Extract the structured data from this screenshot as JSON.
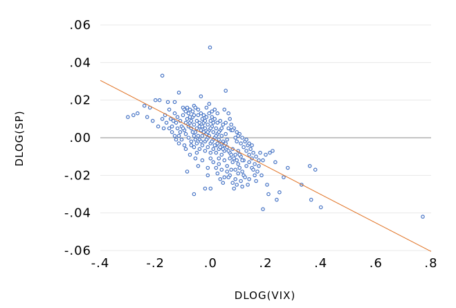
{
  "chart_data": {
    "type": "scatter",
    "title": "",
    "xlabel": "DLOG(VIX)",
    "ylabel": "DLOG(SP)",
    "xlim": [
      -0.4,
      0.8
    ],
    "ylim": [
      -0.06,
      0.06
    ],
    "x_ticks": [
      -0.4,
      -0.2,
      0.0,
      0.2,
      0.4,
      0.6,
      0.8
    ],
    "x_tick_labels": [
      "-.4",
      "-.2",
      ".0",
      ".2",
      ".4",
      ".6",
      ".8"
    ],
    "y_ticks": [
      0.06,
      0.04,
      0.02,
      0.0,
      -0.02,
      -0.04,
      -0.06
    ],
    "y_tick_labels": [
      ".06",
      ".04",
      ".02",
      ".00",
      "-.02",
      "-.04",
      "-.06"
    ],
    "grid": "horizontal",
    "marker_color": "#4472c4",
    "line_color": "#e07020",
    "zero_line_color": "#a0a0a0",
    "trend_line": {
      "x": [
        -0.4,
        0.8
      ],
      "y": [
        0.0305,
        -0.0605
      ]
    },
    "series": [
      {
        "points": [
          [
            -0.002,
            0.048
          ],
          [
            -0.175,
            0.033
          ],
          [
            0.055,
            0.025
          ],
          [
            -0.115,
            0.024
          ],
          [
            -0.035,
            0.022
          ],
          [
            -0.13,
            0.019
          ],
          [
            -0.2,
            0.02
          ],
          [
            -0.185,
            0.02
          ],
          [
            -0.155,
            0.019
          ],
          [
            -0.24,
            0.017
          ],
          [
            -0.22,
            0.016
          ],
          [
            -0.1,
            0.016
          ],
          [
            -0.06,
            0.017
          ],
          [
            -0.28,
            0.012
          ],
          [
            -0.3,
            0.011
          ],
          [
            -0.265,
            0.013
          ],
          [
            -0.23,
            0.011
          ],
          [
            -0.21,
            0.009
          ],
          [
            -0.175,
            0.01
          ],
          [
            -0.16,
            0.008
          ],
          [
            -0.14,
            0.006
          ],
          [
            -0.15,
            0.005
          ],
          [
            -0.19,
            0.006
          ],
          [
            -0.17,
            0.005
          ],
          [
            -0.13,
            0.013
          ],
          [
            -0.12,
            0.011
          ],
          [
            -0.11,
            0.009
          ],
          [
            -0.105,
            0.006
          ],
          [
            -0.095,
            0.004
          ],
          [
            -0.09,
            0.002
          ],
          [
            -0.085,
            0.01
          ],
          [
            -0.08,
            0.013
          ],
          [
            -0.075,
            0.008
          ],
          [
            -0.07,
            0.005
          ],
          [
            -0.065,
            0.011
          ],
          [
            -0.06,
            0.007
          ],
          [
            -0.055,
            0.003
          ],
          [
            -0.05,
            0.009
          ],
          [
            -0.045,
            0.012
          ],
          [
            -0.04,
            0.006
          ],
          [
            -0.035,
            0.004
          ],
          [
            -0.03,
            0.01
          ],
          [
            -0.025,
            0.008
          ],
          [
            -0.02,
            0.005
          ],
          [
            -0.015,
            0.002
          ],
          [
            -0.01,
            0.007
          ],
          [
            -0.005,
            0.004
          ],
          [
            0.0,
            0.009
          ],
          [
            0.005,
            0.006
          ],
          [
            0.01,
            0.003
          ],
          [
            0.015,
            0.0
          ],
          [
            0.02,
            0.005
          ],
          [
            0.025,
            0.002
          ],
          [
            0.03,
            -0.001
          ],
          [
            0.035,
            0.004
          ],
          [
            0.04,
            0.001
          ],
          [
            0.045,
            -0.002
          ],
          [
            0.05,
            -0.004
          ],
          [
            0.055,
            0.002
          ],
          [
            0.06,
            -0.001
          ],
          [
            -0.08,
            0.0
          ],
          [
            -0.07,
            -0.002
          ],
          [
            -0.06,
            0.001
          ],
          [
            -0.05,
            -0.003
          ],
          [
            -0.04,
            -0.001
          ],
          [
            -0.03,
            0.001
          ],
          [
            -0.02,
            -0.002
          ],
          [
            -0.01,
            0.0
          ],
          [
            0.0,
            -0.003
          ],
          [
            0.01,
            -0.001
          ],
          [
            0.02,
            -0.004
          ],
          [
            0.03,
            -0.006
          ],
          [
            0.04,
            -0.003
          ],
          [
            0.05,
            -0.007
          ],
          [
            0.06,
            -0.005
          ],
          [
            0.07,
            -0.008
          ],
          [
            0.08,
            -0.006
          ],
          [
            0.09,
            -0.009
          ],
          [
            0.1,
            -0.007
          ],
          [
            0.11,
            -0.01
          ],
          [
            -0.1,
            0.012
          ],
          [
            -0.095,
            0.015
          ],
          [
            -0.09,
            0.014
          ],
          [
            -0.085,
            0.016
          ],
          [
            -0.075,
            0.015
          ],
          [
            -0.065,
            0.014
          ],
          [
            -0.055,
            0.016
          ],
          [
            -0.045,
            0.015
          ],
          [
            -0.035,
            0.013
          ],
          [
            -0.025,
            0.012
          ],
          [
            -0.015,
            0.011
          ],
          [
            -0.005,
            0.013
          ],
          [
            0.005,
            0.011
          ],
          [
            0.015,
            0.01
          ],
          [
            0.025,
            0.008
          ],
          [
            0.035,
            0.009
          ],
          [
            0.045,
            0.007
          ],
          [
            0.055,
            0.008
          ],
          [
            0.065,
            0.005
          ],
          [
            0.075,
            0.004
          ],
          [
            0.085,
            0.005
          ],
          [
            0.095,
            0.003
          ],
          [
            0.105,
            0.002
          ],
          [
            0.115,
            0.0
          ],
          [
            0.125,
            -0.002
          ],
          [
            0.135,
            -0.004
          ],
          [
            0.145,
            -0.006
          ],
          [
            0.155,
            -0.008
          ],
          [
            0.165,
            -0.01
          ],
          [
            0.175,
            -0.012
          ],
          [
            0.12,
            -0.012
          ],
          [
            0.13,
            -0.015
          ],
          [
            0.14,
            -0.013
          ],
          [
            0.15,
            -0.016
          ],
          [
            0.16,
            -0.014
          ],
          [
            0.17,
            -0.018
          ],
          [
            0.1,
            -0.014
          ],
          [
            0.09,
            -0.017
          ],
          [
            0.08,
            -0.013
          ],
          [
            0.07,
            -0.011
          ],
          [
            0.06,
            -0.015
          ],
          [
            0.05,
            -0.012
          ],
          [
            0.04,
            -0.009
          ],
          [
            0.03,
            -0.011
          ],
          [
            0.02,
            -0.008
          ],
          [
            0.01,
            -0.006
          ],
          [
            0.0,
            -0.008
          ],
          [
            -0.01,
            -0.005
          ],
          [
            -0.02,
            -0.007
          ],
          [
            -0.03,
            -0.004
          ],
          [
            -0.04,
            -0.006
          ],
          [
            -0.05,
            -0.008
          ],
          [
            -0.06,
            -0.005
          ],
          [
            -0.07,
            -0.004
          ],
          [
            -0.09,
            -0.006
          ],
          [
            -0.11,
            0.003
          ],
          [
            -0.12,
            0.005
          ],
          [
            -0.125,
            0.008
          ],
          [
            -0.115,
            0.001
          ],
          [
            -0.105,
            -0.001
          ],
          [
            -0.1,
            0.005
          ],
          [
            -0.09,
            0.008
          ],
          [
            -0.08,
            0.006
          ],
          [
            -0.07,
            0.009
          ],
          [
            -0.06,
            0.012
          ],
          [
            -0.05,
            0.005
          ],
          [
            -0.04,
            0.008
          ],
          [
            -0.03,
            0.006
          ],
          [
            -0.02,
            0.009
          ],
          [
            -0.01,
            0.003
          ],
          [
            0.0,
            0.005
          ],
          [
            0.01,
            0.008
          ],
          [
            0.02,
            0.001
          ],
          [
            0.03,
            0.003
          ],
          [
            0.04,
            0.005
          ],
          [
            0.065,
            0.013
          ],
          [
            0.05,
            0.015
          ],
          [
            0.08,
            0.004
          ],
          [
            0.1,
            0.001
          ],
          [
            0.11,
            -0.003
          ],
          [
            0.12,
            -0.005
          ],
          [
            0.13,
            -0.007
          ],
          [
            0.14,
            -0.009
          ],
          [
            0.15,
            -0.011
          ],
          [
            0.18,
            -0.008
          ],
          [
            0.2,
            -0.009
          ],
          [
            0.215,
            -0.008
          ],
          [
            0.225,
            -0.007
          ],
          [
            0.19,
            -0.012
          ],
          [
            0.175,
            -0.015
          ],
          [
            0.16,
            -0.02
          ],
          [
            0.14,
            -0.022
          ],
          [
            0.12,
            -0.02
          ],
          [
            0.11,
            -0.023
          ],
          [
            0.1,
            -0.019
          ],
          [
            0.09,
            -0.022
          ],
          [
            0.08,
            -0.024
          ],
          [
            0.07,
            -0.02
          ],
          [
            0.06,
            -0.018
          ],
          [
            0.05,
            -0.021
          ],
          [
            0.04,
            -0.017
          ],
          [
            0.03,
            -0.014
          ],
          [
            0.02,
            -0.016
          ],
          [
            0.01,
            -0.013
          ],
          [
            0.0,
            -0.011
          ],
          [
            0.135,
            -0.025
          ],
          [
            0.115,
            -0.026
          ],
          [
            0.095,
            -0.025
          ],
          [
            0.085,
            -0.027
          ],
          [
            0.125,
            -0.021
          ],
          [
            0.155,
            -0.017
          ],
          [
            0.165,
            -0.023
          ],
          [
            0.185,
            -0.02
          ],
          [
            0.205,
            -0.025
          ],
          [
            0.21,
            -0.03
          ],
          [
            0.19,
            -0.038
          ],
          [
            0.24,
            -0.033
          ],
          [
            0.25,
            -0.029
          ],
          [
            0.235,
            -0.013
          ],
          [
            0.265,
            -0.021
          ],
          [
            0.28,
            -0.016
          ],
          [
            0.33,
            -0.025
          ],
          [
            0.36,
            -0.015
          ],
          [
            0.38,
            -0.017
          ],
          [
            0.365,
            -0.033
          ],
          [
            0.4,
            -0.037
          ],
          [
            0.77,
            -0.042
          ],
          [
            -0.01,
            -0.016
          ],
          [
            -0.01,
            -0.02
          ],
          [
            -0.02,
            -0.027
          ],
          [
            0.0,
            -0.027
          ],
          [
            -0.06,
            -0.03
          ],
          [
            -0.085,
            -0.018
          ],
          [
            -0.03,
            -0.012
          ],
          [
            -0.045,
            -0.015
          ],
          [
            -0.055,
            -0.011
          ],
          [
            -0.075,
            -0.009
          ],
          [
            -0.095,
            -0.004
          ],
          [
            0.045,
            -0.024
          ],
          [
            0.065,
            -0.021
          ],
          [
            0.025,
            -0.019
          ],
          [
            0.035,
            -0.022
          ],
          [
            0.075,
            -0.017
          ],
          [
            0.105,
            -0.016
          ],
          [
            0.115,
            -0.018
          ],
          [
            -0.15,
            0.015
          ],
          [
            -0.165,
            0.012
          ],
          [
            -0.145,
            0.01
          ],
          [
            -0.135,
            0.009
          ],
          [
            -0.14,
            0.003
          ],
          [
            -0.13,
            0.001
          ],
          [
            -0.125,
            -0.001
          ],
          [
            -0.115,
            -0.003
          ],
          [
            0.07,
            0.01
          ],
          [
            0.075,
            0.007
          ],
          [
            0.09,
            0.0
          ],
          [
            0.095,
            -0.002
          ],
          [
            0.13,
            -0.001
          ],
          [
            0.14,
            -0.003
          ],
          [
            0.15,
            -0.004
          ],
          [
            -0.015,
            0.016
          ],
          [
            -0.005,
            0.018
          ],
          [
            0.005,
            0.014
          ],
          [
            0.015,
            0.015
          ],
          [
            0.025,
            0.013
          ],
          [
            -0.075,
            0.011
          ],
          [
            -0.065,
            0.003
          ],
          [
            -0.055,
            -0.001
          ],
          [
            -0.045,
            0.001
          ],
          [
            -0.035,
            -0.002
          ],
          [
            -0.025,
            0.003
          ],
          [
            -0.015,
            -0.001
          ],
          [
            -0.005,
            0.001
          ],
          [
            0.005,
            -0.002
          ],
          [
            0.015,
            -0.004
          ],
          [
            0.025,
            -0.003
          ],
          [
            0.035,
            -0.005
          ],
          [
            0.045,
            -0.006
          ],
          [
            0.055,
            -0.003
          ],
          [
            0.065,
            -0.007
          ],
          [
            0.075,
            -0.009
          ],
          [
            0.085,
            -0.011
          ],
          [
            0.095,
            -0.012
          ],
          [
            0.105,
            -0.009
          ],
          [
            0.115,
            -0.012
          ]
        ]
      }
    ]
  }
}
